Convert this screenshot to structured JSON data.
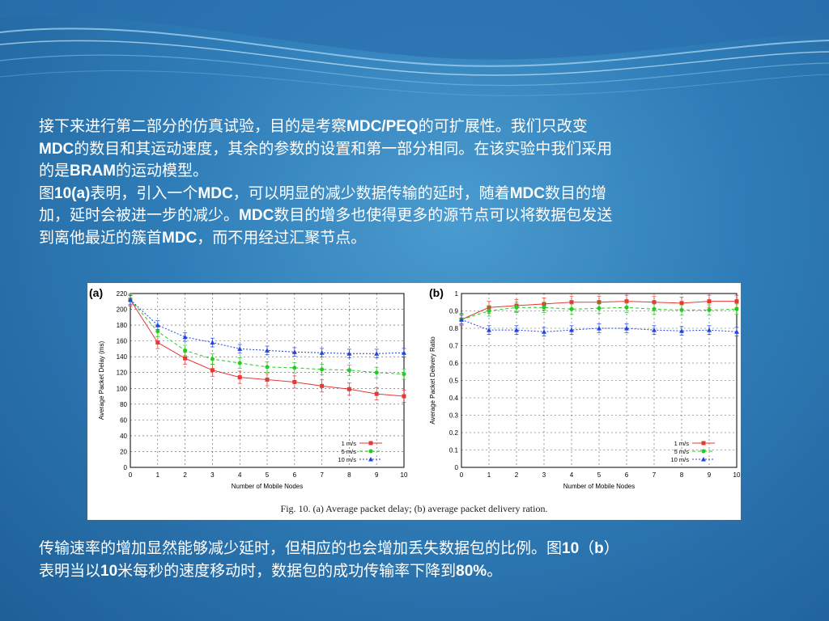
{
  "para1": [
    "接下来进行第二部分的仿真试验，目的是考察MDC/PEQ的可扩展性。我们只改变",
    "MDC的数目和其运动速度，其余的参数的设置和第一部分相同。在该实验中我们采用",
    "的是BRAM的运动模型。",
    "图10(a)表明，引入一个MDC，可以明显的减少数据传输的延时，随着MDC数目的增",
    "加，延时会被进一步的减少。MDC数目的增多也使得更多的源节点可以将数据包发送",
    "到离他最近的簇首MDC，而不用经过汇聚节点。"
  ],
  "para2": [
    "传输速率的增加显然能够减少延时，但相应的也会增加丢失数据包的比例。图10（b）",
    "表明当以10米每秒的速度移动时，数据包的成功传输率下降到80%。"
  ],
  "caption": "Fig. 10.  (a) Average packet delay; (b) average packet delivery ration.",
  "chart_data": [
    {
      "type": "line",
      "panel_label": "(a)",
      "xlabel": "Number of Mobile Nodes",
      "ylabel": "Average Packet Delay (ms)",
      "xlim": [
        0,
        10
      ],
      "ylim": [
        0,
        220
      ],
      "xticks": [
        0,
        1,
        2,
        3,
        4,
        5,
        6,
        7,
        8,
        9,
        10
      ],
      "yticks": [
        0,
        20,
        40,
        60,
        80,
        100,
        120,
        140,
        160,
        180,
        200,
        220
      ],
      "grid": true,
      "legend_position": "bottom-right",
      "x": [
        0,
        1,
        2,
        3,
        4,
        5,
        6,
        7,
        8,
        9,
        10
      ],
      "series": [
        {
          "name": "1 m/s",
          "color": "#e53935",
          "marker": "square",
          "dash": "solid",
          "values": [
            212,
            158,
            138,
            123,
            114,
            111,
            108,
            103,
            99,
            93,
            90
          ]
        },
        {
          "name": "5 m/s",
          "color": "#22cc22",
          "marker": "circle",
          "dash": "dashed",
          "values": [
            212,
            172,
            148,
            137,
            132,
            127,
            126,
            124,
            123,
            120,
            118
          ]
        },
        {
          "name": "10 m/s",
          "color": "#2244dd",
          "marker": "triangle",
          "dash": "dotted",
          "values": [
            212,
            180,
            165,
            158,
            150,
            148,
            146,
            145,
            144,
            144,
            145
          ]
        }
      ]
    },
    {
      "type": "line",
      "panel_label": "(b)",
      "xlabel": "Number of Mobile Nodes",
      "ylabel": "Average Packet Delivery Ratio",
      "xlim": [
        0,
        10
      ],
      "ylim": [
        0,
        1
      ],
      "xticks": [
        0,
        1,
        2,
        3,
        4,
        5,
        6,
        7,
        8,
        9,
        10
      ],
      "yticks": [
        0,
        0.1,
        0.2,
        0.3,
        0.4,
        0.5,
        0.6,
        0.7,
        0.8,
        0.9,
        1
      ],
      "grid": true,
      "legend_position": "bottom-right",
      "x": [
        0,
        1,
        2,
        3,
        4,
        5,
        6,
        7,
        8,
        9,
        10
      ],
      "series": [
        {
          "name": "1 m/s",
          "color": "#e53935",
          "marker": "square",
          "dash": "solid",
          "values": [
            0.85,
            0.92,
            0.93,
            0.94,
            0.95,
            0.95,
            0.955,
            0.95,
            0.945,
            0.955,
            0.955
          ]
        },
        {
          "name": "5 m/s",
          "color": "#22cc22",
          "marker": "circle",
          "dash": "dashed",
          "values": [
            0.85,
            0.9,
            0.92,
            0.92,
            0.91,
            0.915,
            0.92,
            0.91,
            0.905,
            0.905,
            0.91
          ]
        },
        {
          "name": "10 m/s",
          "color": "#2244dd",
          "marker": "triangle",
          "dash": "dotted",
          "values": [
            0.85,
            0.79,
            0.79,
            0.78,
            0.79,
            0.8,
            0.8,
            0.79,
            0.785,
            0.79,
            0.78
          ]
        }
      ]
    }
  ]
}
